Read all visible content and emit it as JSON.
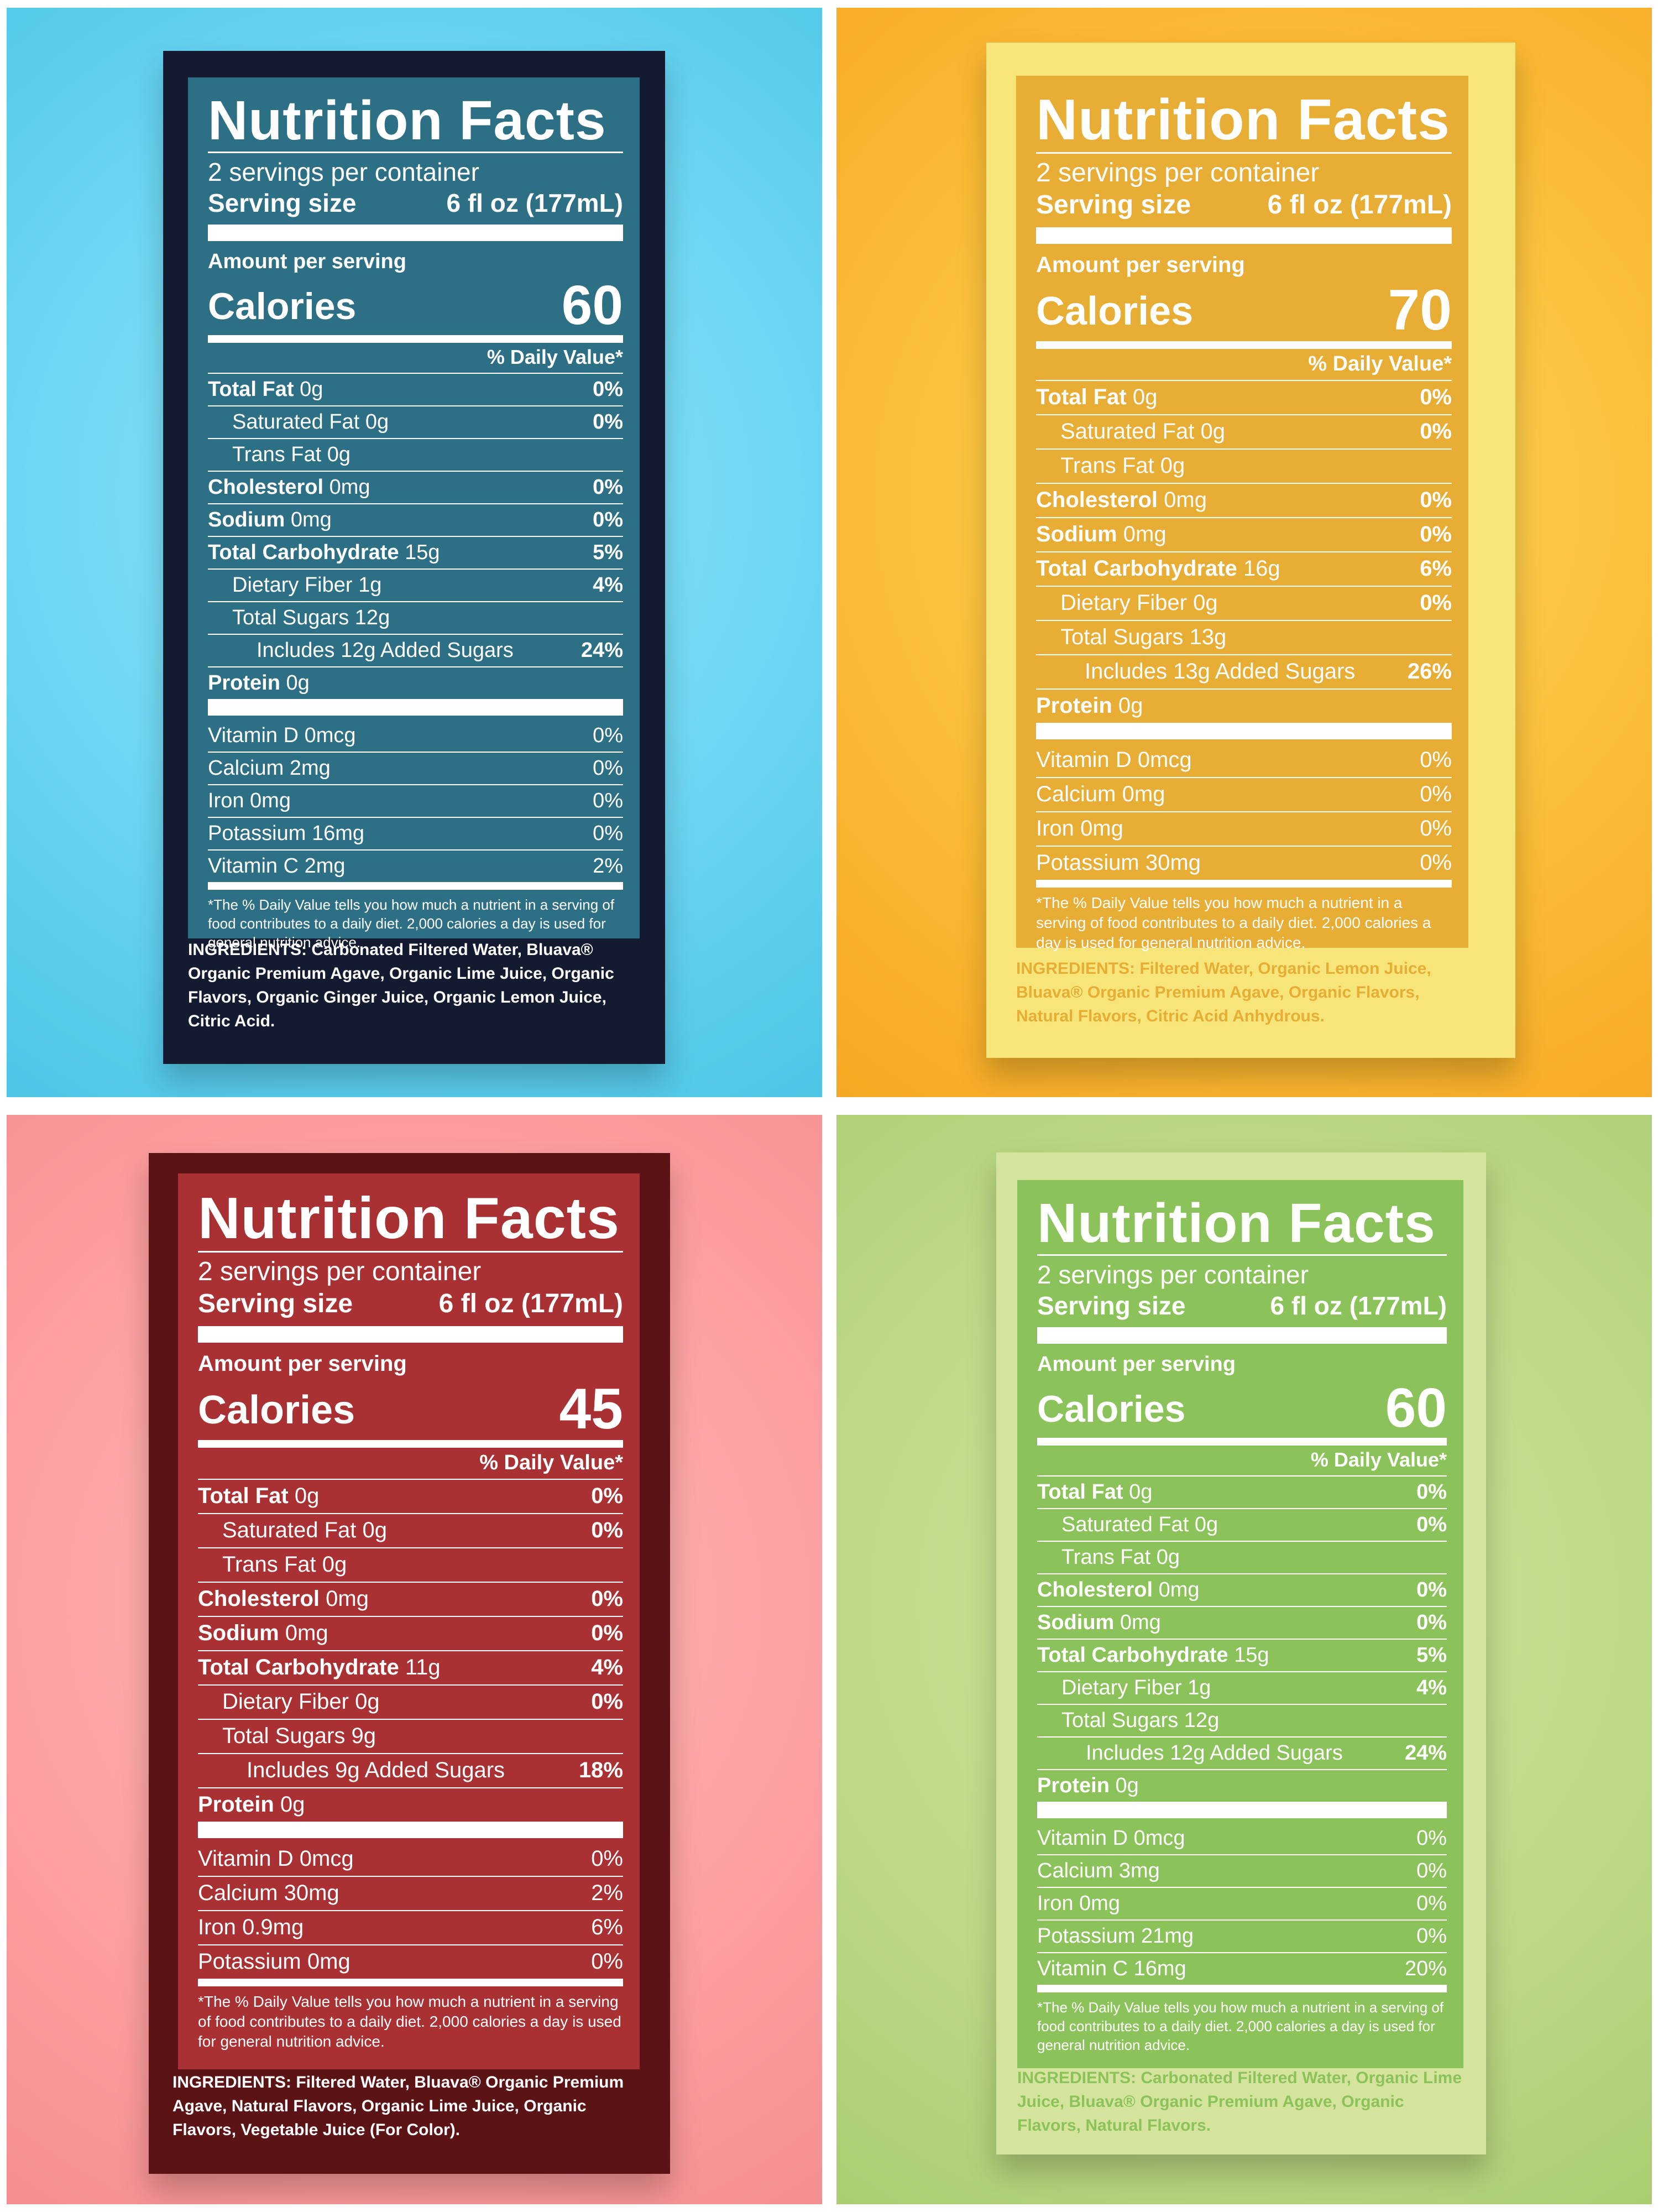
{
  "labels": {
    "blue": {
      "title": "Nutrition Facts",
      "servings": "2 servings per container",
      "serving_size_label": "Serving size",
      "serving_size_value": "6 fl oz (177mL)",
      "amount_per_serving": "Amount per serving",
      "calories_label": "Calories",
      "calories_value": "60",
      "daily_value_header": "% Daily Value*",
      "nutrients": [
        {
          "name": "Total Fat",
          "amount": "0g",
          "dv": "0%"
        },
        {
          "name": "Saturated Fat",
          "amount": "0g",
          "dv": "0%"
        },
        {
          "name": "Trans Fat",
          "amount": "0g",
          "dv": ""
        },
        {
          "name": "Cholesterol",
          "amount": "0mg",
          "dv": "0%"
        },
        {
          "name": "Sodium",
          "amount": "0mg",
          "dv": "0%"
        },
        {
          "name": "Total Carbohydrate",
          "amount": "15g",
          "dv": "5%"
        },
        {
          "name": "Dietary Fiber",
          "amount": "1g",
          "dv": "4%"
        },
        {
          "name": "Total Sugars",
          "amount": "12g",
          "dv": ""
        },
        {
          "name": "Includes 12g Added Sugars",
          "amount": "",
          "dv": "24%"
        },
        {
          "name": "Protein",
          "amount": "0g",
          "dv": ""
        }
      ],
      "vitamins": [
        {
          "name": "Vitamin D",
          "amount": "0mcg",
          "dv": "0%"
        },
        {
          "name": "Calcium",
          "amount": "2mg",
          "dv": "0%"
        },
        {
          "name": "Iron",
          "amount": "0mg",
          "dv": "0%"
        },
        {
          "name": "Potassium",
          "amount": "16mg",
          "dv": "0%"
        },
        {
          "name": "Vitamin C",
          "amount": "2mg",
          "dv": "2%"
        }
      ],
      "footnote": "*The % Daily Value tells you how much a nutrient in a serving of food contributes to a daily diet. 2,000 calories a day is used for general nutrition advice.",
      "ingredients": "INGREDIENTS: Carbonated Filtered Water, Bluava® Organic Premium Agave, Organic Lime Juice, Organic Flavors, Organic Ginger Juice, Organic Lemon Juice, Citric Acid."
    },
    "yellow": {
      "title": "Nutrition Facts",
      "servings": "2 servings per container",
      "serving_size_label": "Serving size",
      "serving_size_value": "6 fl oz (177mL)",
      "amount_per_serving": "Amount per serving",
      "calories_label": "Calories",
      "calories_value": "70",
      "daily_value_header": "% Daily Value*",
      "nutrients": [
        {
          "name": "Total Fat",
          "amount": "0g",
          "dv": "0%"
        },
        {
          "name": "Saturated Fat",
          "amount": "0g",
          "dv": "0%"
        },
        {
          "name": "Trans Fat",
          "amount": "0g",
          "dv": ""
        },
        {
          "name": "Cholesterol",
          "amount": "0mg",
          "dv": "0%"
        },
        {
          "name": "Sodium",
          "amount": "0mg",
          "dv": "0%"
        },
        {
          "name": "Total Carbohydrate",
          "amount": "16g",
          "dv": "6%"
        },
        {
          "name": "Dietary Fiber",
          "amount": "0g",
          "dv": "0%"
        },
        {
          "name": "Total Sugars",
          "amount": "13g",
          "dv": ""
        },
        {
          "name": "Includes 13g Added Sugars",
          "amount": "",
          "dv": "26%"
        },
        {
          "name": "Protein",
          "amount": "0g",
          "dv": ""
        }
      ],
      "vitamins": [
        {
          "name": "Vitamin D",
          "amount": "0mcg",
          "dv": "0%"
        },
        {
          "name": "Calcium",
          "amount": "0mg",
          "dv": "0%"
        },
        {
          "name": "Iron",
          "amount": "0mg",
          "dv": "0%"
        },
        {
          "name": "Potassium",
          "amount": "30mg",
          "dv": "0%"
        }
      ],
      "footnote": "*The % Daily Value tells you how much a nutrient in a serving of food contributes to a daily diet. 2,000 calories a day is used for general nutrition advice.",
      "ingredients": "INGREDIENTS: Filtered Water, Organic Lemon Juice, Bluava® Organic Premium Agave, Organic Flavors, Natural Flavors, Citric Acid Anhydrous."
    },
    "red": {
      "title": "Nutrition Facts",
      "servings": "2 servings per container",
      "serving_size_label": "Serving size",
      "serving_size_value": "6 fl oz (177mL)",
      "amount_per_serving": "Amount per serving",
      "calories_label": "Calories",
      "calories_value": "45",
      "daily_value_header": "% Daily Value*",
      "nutrients": [
        {
          "name": "Total Fat",
          "amount": "0g",
          "dv": "0%"
        },
        {
          "name": "Saturated Fat",
          "amount": "0g",
          "dv": "0%"
        },
        {
          "name": "Trans Fat",
          "amount": "0g",
          "dv": ""
        },
        {
          "name": "Cholesterol",
          "amount": "0mg",
          "dv": "0%"
        },
        {
          "name": "Sodium",
          "amount": "0mg",
          "dv": "0%"
        },
        {
          "name": "Total Carbohydrate",
          "amount": "11g",
          "dv": "4%"
        },
        {
          "name": "Dietary Fiber",
          "amount": "0g",
          "dv": "0%"
        },
        {
          "name": "Total Sugars",
          "amount": "9g",
          "dv": ""
        },
        {
          "name": "Includes 9g Added Sugars",
          "amount": "",
          "dv": "18%"
        },
        {
          "name": "Protein",
          "amount": "0g",
          "dv": ""
        }
      ],
      "vitamins": [
        {
          "name": "Vitamin D",
          "amount": "0mcg",
          "dv": "0%"
        },
        {
          "name": "Calcium",
          "amount": "30mg",
          "dv": "2%"
        },
        {
          "name": "Iron",
          "amount": "0.9mg",
          "dv": "6%"
        },
        {
          "name": "Potassium",
          "amount": "0mg",
          "dv": "0%"
        }
      ],
      "footnote": "*The % Daily Value tells you how much a nutrient in a serving of food contributes to a daily diet. 2,000 calories a day is used for general nutrition advice.",
      "ingredients": "INGREDIENTS: Filtered Water, Bluava® Organic Premium Agave, Natural Flavors, Organic Lime Juice, Organic Flavors, Vegetable Juice (For Color)."
    },
    "green": {
      "title": "Nutrition Facts",
      "servings": "2 servings per container",
      "serving_size_label": "Serving size",
      "serving_size_value": "6 fl oz (177mL)",
      "amount_per_serving": "Amount per serving",
      "calories_label": "Calories",
      "calories_value": "60",
      "daily_value_header": "% Daily Value*",
      "nutrients": [
        {
          "name": "Total Fat",
          "amount": "0g",
          "dv": "0%"
        },
        {
          "name": "Saturated Fat",
          "amount": "0g",
          "dv": "0%"
        },
        {
          "name": "Trans Fat",
          "amount": "0g",
          "dv": ""
        },
        {
          "name": "Cholesterol",
          "amount": "0mg",
          "dv": "0%"
        },
        {
          "name": "Sodium",
          "amount": "0mg",
          "dv": "0%"
        },
        {
          "name": "Total Carbohydrate",
          "amount": "15g",
          "dv": "5%"
        },
        {
          "name": "Dietary Fiber",
          "amount": "1g",
          "dv": "4%"
        },
        {
          "name": "Total Sugars",
          "amount": "12g",
          "dv": ""
        },
        {
          "name": "Includes 12g Added Sugars",
          "amount": "",
          "dv": "24%"
        },
        {
          "name": "Protein",
          "amount": "0g",
          "dv": ""
        }
      ],
      "vitamins": [
        {
          "name": "Vitamin D",
          "amount": "0mcg",
          "dv": "0%"
        },
        {
          "name": "Calcium",
          "amount": "3mg",
          "dv": "0%"
        },
        {
          "name": "Iron",
          "amount": "0mg",
          "dv": "0%"
        },
        {
          "name": "Potassium",
          "amount": "21mg",
          "dv": "0%"
        },
        {
          "name": "Vitamin C",
          "amount": "16mg",
          "dv": "20%"
        }
      ],
      "footnote": "*The % Daily Value tells you how much a nutrient in a serving of food contributes to a daily diet. 2,000 calories a day is used for general nutrition advice.",
      "ingredients": "INGREDIENTS: Carbonated Filtered Water, Organic Lime Juice, Bluava® Organic Premium Agave, Organic Flavors, Natural Flavors."
    }
  },
  "colors": {
    "blue_card": "#141b31",
    "blue_panel": "#2d6f84",
    "blue_ingredients": "#ffffff",
    "yellow_card": "#f8e57a",
    "yellow_panel": "#e7ad35",
    "yellow_ingredients": "#e7ad35",
    "red_card": "#5c1316",
    "red_panel": "#a93133",
    "red_ingredients": "#ffffff",
    "green_card": "#d5e49c",
    "green_panel": "#8cc25a",
    "green_ingredients": "#8cc25a"
  }
}
